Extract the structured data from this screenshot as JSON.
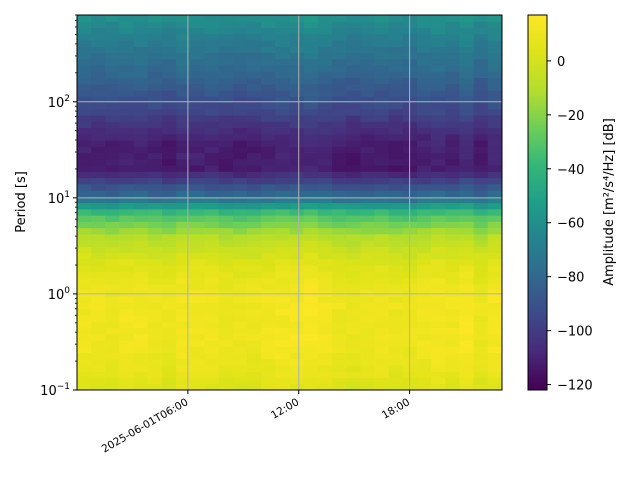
{
  "chart_data": {
    "type": "heatmap",
    "title": "",
    "ylabel": "Period [s]",
    "xlabel": "",
    "y_scale": "log",
    "y_range": [
      0.1,
      800
    ],
    "x_range": [
      "2025-06-01T00:00",
      "2025-06-01T23:00"
    ],
    "x_ticks": [
      {
        "t": "2025-06-01T06:00",
        "label": "2025-06-01T06:00"
      },
      {
        "t": "2025-06-01T12:00",
        "label": "12:00"
      },
      {
        "t": "2025-06-01T18:00",
        "label": "18:00"
      }
    ],
    "y_ticks": [
      {
        "v": 0.1,
        "base": "10",
        "exp": "−1"
      },
      {
        "v": 1,
        "base": "10",
        "exp": "0"
      },
      {
        "v": 10,
        "base": "10",
        "exp": "1"
      },
      {
        "v": 100,
        "base": "10",
        "exp": "2"
      }
    ],
    "grid": true,
    "colormap": "viridis",
    "colorbar": {
      "label": "Amplitude [m²/s⁴/Hz] [dB]",
      "range": [
        -122,
        17
      ],
      "ticks": [
        0,
        -20,
        -40,
        -60,
        -80,
        -100,
        -120
      ]
    },
    "approx_profile_db_by_period": [
      {
        "period_s": 0.1,
        "db": 3
      },
      {
        "period_s": 0.15,
        "db": 8
      },
      {
        "period_s": 0.3,
        "db": 12
      },
      {
        "period_s": 1,
        "db": 12
      },
      {
        "period_s": 2,
        "db": 5
      },
      {
        "period_s": 4,
        "db": -10
      },
      {
        "period_s": 7,
        "db": -35
      },
      {
        "period_s": 10,
        "db": -75
      },
      {
        "period_s": 20,
        "db": -112
      },
      {
        "period_s": 40,
        "db": -110
      },
      {
        "period_s": 80,
        "db": -95
      },
      {
        "period_s": 200,
        "db": -80
      },
      {
        "period_s": 400,
        "db": -70
      },
      {
        "period_s": 800,
        "db": -58
      }
    ]
  }
}
